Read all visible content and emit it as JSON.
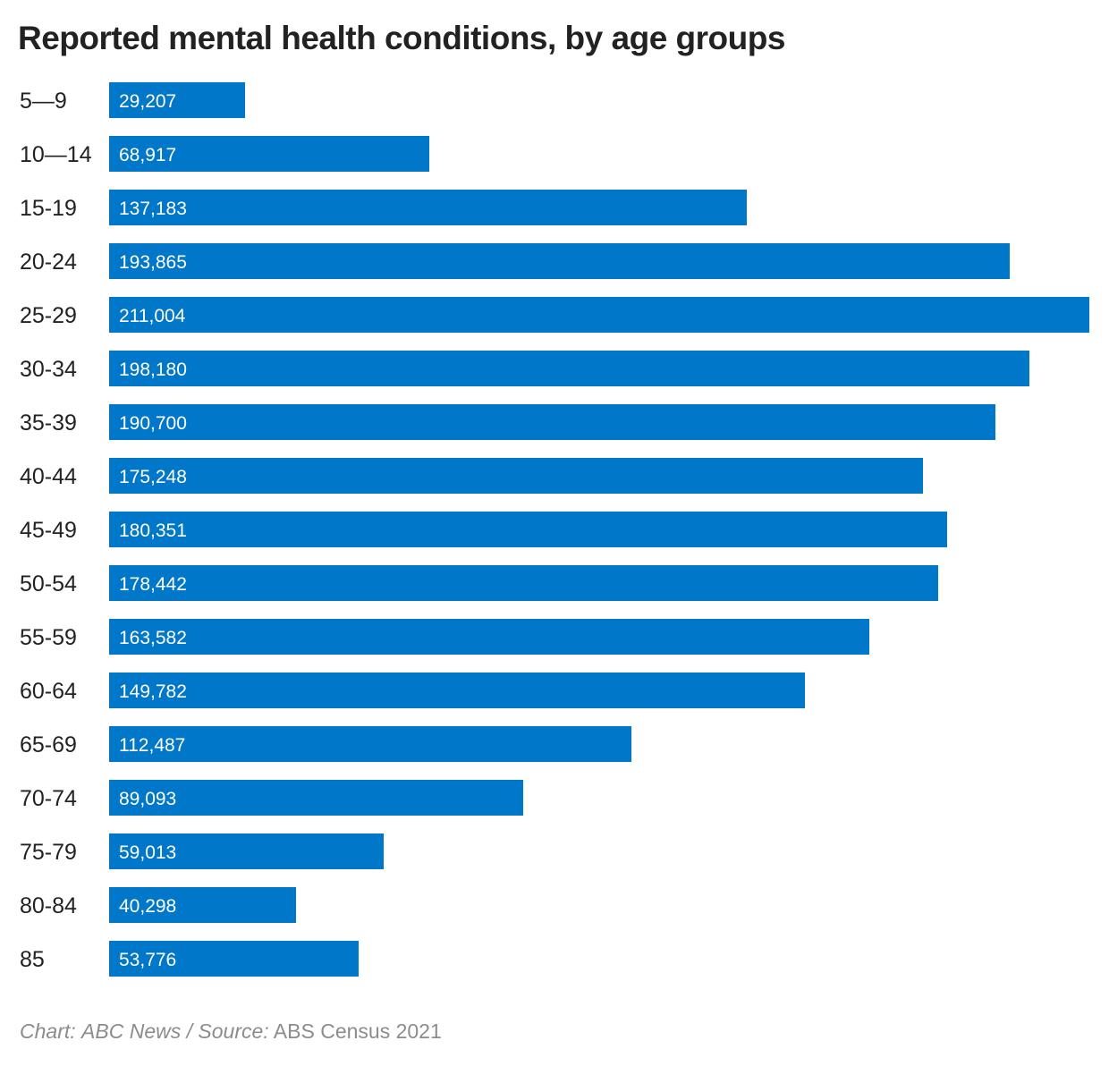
{
  "chart_data": {
    "type": "bar",
    "orientation": "horizontal",
    "title": "Reported mental health conditions, by age groups",
    "categories": [
      "5—9",
      "10—14",
      "15-19",
      "20-24",
      "25-29",
      "30-34",
      "35-39",
      "40-44",
      "45-49",
      "50-54",
      "55-59",
      "60-64",
      "65-69",
      "70-74",
      "75-79",
      "80-84",
      "85"
    ],
    "values": [
      29207,
      68917,
      137183,
      193865,
      211004,
      198180,
      190700,
      175248,
      180351,
      178442,
      163582,
      149782,
      112487,
      89093,
      59013,
      40298,
      53776
    ],
    "value_labels": [
      "29,207",
      "68,917",
      "137,183",
      "193,865",
      "211,004",
      "198,180",
      "190,700",
      "175,248",
      "180,351",
      "178,442",
      "163,582",
      "149,782",
      "112,487",
      "89,093",
      "59,013",
      "40,298",
      "53,776"
    ],
    "xlabel": "",
    "ylabel": "",
    "xlim": [
      0,
      211004
    ],
    "grid": false,
    "legend": "none",
    "bar_color": "#0077c8"
  },
  "footer": {
    "chart_prefix": "Chart:",
    "chart_credit": "ABC News /",
    "source_prefix": "Source:",
    "source_credit": "ABS Census 2021"
  }
}
